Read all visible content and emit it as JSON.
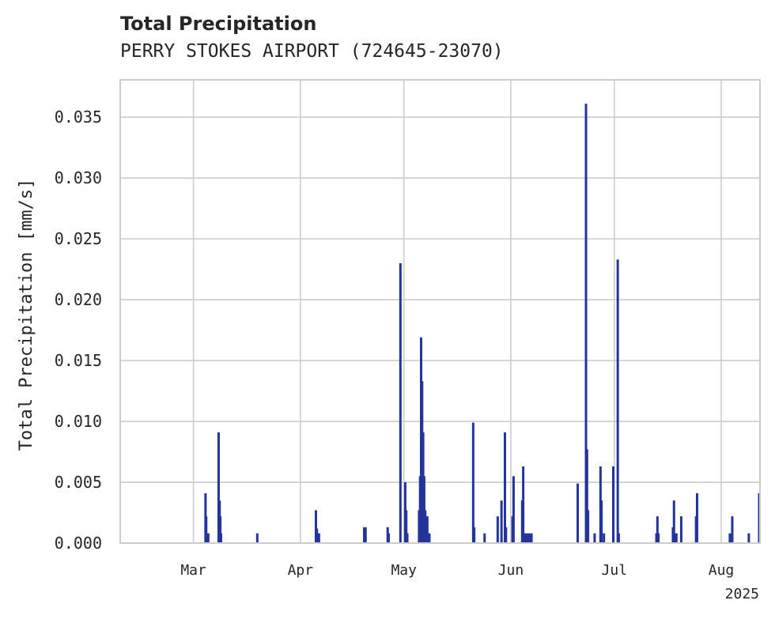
{
  "chart_data": {
    "type": "bar",
    "title": "Total Precipitation",
    "subtitle": "PERRY STOKES AIRPORT (724645-23070)",
    "ylabel": "Total Precipitation [mm/s]",
    "xlabel": "",
    "year_label": "2025",
    "ylim": [
      0,
      0.038
    ],
    "yticks": [
      0.0,
      0.005,
      0.01,
      0.015,
      0.02,
      0.025,
      0.03,
      0.035
    ],
    "ytick_labels": [
      "0.000",
      "0.005",
      "0.010",
      "0.015",
      "0.020",
      "0.025",
      "0.030",
      "0.035"
    ],
    "x_range_days": [
      -21,
      164
    ],
    "xticks": [
      {
        "day": 0,
        "label": "Mar"
      },
      {
        "day": 31,
        "label": "Apr"
      },
      {
        "day": 61,
        "label": "May"
      },
      {
        "day": 92,
        "label": "Jun"
      },
      {
        "day": 122,
        "label": "Jul"
      },
      {
        "day": 153,
        "label": "Aug"
      }
    ],
    "grid": true,
    "color": "#23349a",
    "series": [
      {
        "name": "Total Precipitation",
        "x": [
          3.5,
          3.7,
          4.0,
          4.3,
          7.3,
          7.6,
          7.8,
          8.0,
          18.5,
          35.5,
          35.8,
          36.1,
          36.4,
          49.5,
          49.9,
          56.3,
          56.6,
          60.0,
          61.4,
          61.7,
          62.0,
          65.4,
          65.7,
          66.0,
          66.3,
          66.6,
          66.9,
          67.2,
          67.5,
          67.8,
          68.1,
          68.4,
          81.1,
          81.4,
          84.4,
          88.2,
          89.3,
          90.3,
          90.6,
          92.5,
          92.8,
          95.3,
          95.6,
          96.0,
          96.4,
          97.0,
          97.4,
          98.0,
          111.4,
          113.8,
          114.1,
          114.4,
          116.3,
          118.0,
          118.3,
          119.0,
          121.7,
          123.0,
          123.3,
          134.2,
          134.5,
          134.8,
          139.0,
          139.3,
          139.7,
          140.0,
          141.4,
          145.7,
          146.0,
          155.5,
          156.2,
          161.0,
          164.0
        ],
        "values": [
          0.0041,
          0.0022,
          0.0008,
          0.0008,
          0.0091,
          0.0035,
          0.0022,
          0.0008,
          0.0008,
          0.0027,
          0.0012,
          0.0008,
          0.0008,
          0.0013,
          0.0013,
          0.0013,
          0.0008,
          0.023,
          0.005,
          0.0027,
          0.0008,
          0.0027,
          0.0055,
          0.0169,
          0.0133,
          0.0091,
          0.0055,
          0.0027,
          0.0012,
          0.0022,
          0.0008,
          0.0008,
          0.0099,
          0.0013,
          0.0008,
          0.0022,
          0.0035,
          0.0091,
          0.0013,
          0.0022,
          0.0055,
          0.0035,
          0.0063,
          0.0008,
          0.0008,
          0.0008,
          0.0008,
          0.0008,
          0.0049,
          0.0361,
          0.0077,
          0.0027,
          0.0008,
          0.0063,
          0.0035,
          0.0008,
          0.0063,
          0.0233,
          0.0008,
          0.0008,
          0.0022,
          0.0008,
          0.0013,
          0.0035,
          0.0008,
          0.0008,
          0.0022,
          0.0022,
          0.0041,
          0.0008,
          0.0022,
          0.0008,
          0.0041
        ]
      }
    ]
  }
}
